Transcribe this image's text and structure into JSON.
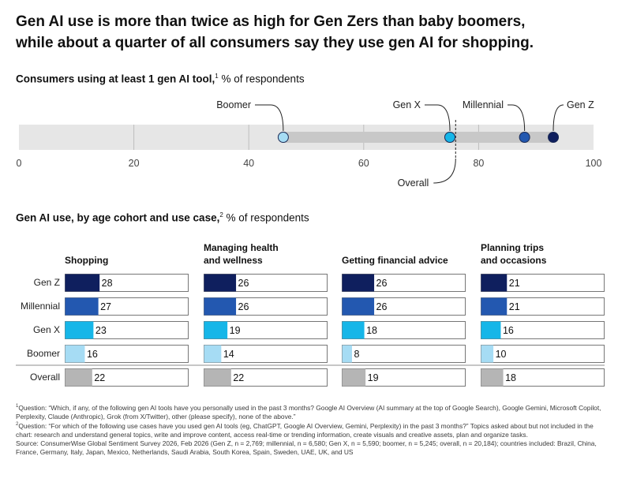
{
  "title_line1": "Gen AI use is more than twice as high for Gen Zers than baby boomers,",
  "title_line2": "while about a quarter of all consumers say they use gen AI for shopping.",
  "colors": {
    "Gen Z": "#0f1f5e",
    "Millennial": "#2358b0",
    "Gen X": "#16b6e8",
    "Boomer": "#a6dcf4",
    "Overall": "#b5b5b5",
    "track": "#e6e6e6",
    "range": "#c8c8c8"
  },
  "chart_data": [
    {
      "type": "scatter",
      "title": "Consumers using at least 1 gen AI tool,",
      "title_sup": "1",
      "title_suffix": " % of respondents",
      "xlim": [
        0,
        100
      ],
      "x_ticks": [
        0,
        20,
        40,
        60,
        80,
        100
      ],
      "points": [
        {
          "name": "Boomer",
          "value": 46
        },
        {
          "name": "Gen X",
          "value": 75
        },
        {
          "name": "Millennial",
          "value": 88
        },
        {
          "name": "Gen Z",
          "value": 93
        }
      ],
      "reference": {
        "name": "Overall",
        "value": 76
      },
      "grid": true
    },
    {
      "type": "bar",
      "title": "Gen AI use, by age cohort and use case,",
      "title_sup": "2",
      "title_suffix": " % of respondents",
      "categories": [
        "Gen Z",
        "Millennial",
        "Gen X",
        "Boomer",
        "Overall"
      ],
      "xlim": [
        0,
        100
      ],
      "series": [
        {
          "name": "Shopping",
          "name_lines": [
            "Shopping"
          ],
          "values": [
            28,
            27,
            23,
            16,
            22
          ]
        },
        {
          "name": "Managing health and wellness",
          "name_lines": [
            "Managing health",
            "and wellness"
          ],
          "values": [
            26,
            26,
            19,
            14,
            22
          ]
        },
        {
          "name": "Getting financial advice",
          "name_lines": [
            "Getting financial advice"
          ],
          "values": [
            26,
            26,
            18,
            8,
            19
          ]
        },
        {
          "name": "Planning trips and occasions",
          "name_lines": [
            "Planning trips",
            "and occasions"
          ],
          "values": [
            21,
            21,
            16,
            10,
            18
          ]
        }
      ]
    }
  ],
  "footnotes": {
    "note1_mark": "1",
    "note1": "Question: “Which, if any, of the following gen AI tools have you personally used in the past 3 months? Google AI Overview (AI summary at the top of Google Search), Google Gemini, Microsoft Copilot, Perplexity, Claude (Anthropic), Grok (from X/Twitter), other (please specify), none of the above.”",
    "note2_mark": "2",
    "note2": "Question: “For which of the following use cases have you used gen AI tools (eg, ChatGPT, Google AI Overview, Gemini, Perplexity) in the past 3 months?” Topics asked about but not included in the chart: research and understand general topics, write and improve content, access real-time or trending information, create visuals and creative assets, plan and organize tasks.",
    "source": "Source: ConsumerWise Global Sentiment Survey 2026, Feb 2026 (Gen Z, n = 2,769; millennial, n = 6,580; Gen X, n = 5,590; boomer, n = 5,245; overall, n = 20,184); countries included: Brazil, China, France, Germany, Italy, Japan, Mexico, Netherlands, Saudi Arabia, South Korea, Spain, Sweden, UAE, UK, and US"
  }
}
